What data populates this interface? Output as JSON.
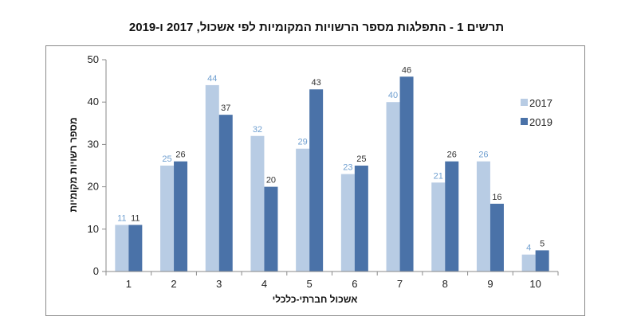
{
  "title": "תרשים 1 - התפלגות מספר הרשויות המקומיות לפי אשכול, 2017 ו-2019",
  "chart_data": {
    "type": "bar",
    "title": "תרשים 1 - התפלגות מספר הרשויות המקומיות לפי אשכול, 2017 ו-2019",
    "xlabel": "אשכול חברתי-כלכלי",
    "ylabel": "מספר רשויות מקומיות",
    "categories": [
      "1",
      "2",
      "3",
      "4",
      "5",
      "6",
      "7",
      "8",
      "9",
      "10"
    ],
    "ylim": [
      0,
      50
    ],
    "yticks": [
      0,
      10,
      20,
      30,
      40,
      50
    ],
    "grid": false,
    "legend_position": "right",
    "series": [
      {
        "name": "2017",
        "color": "#b8cce4",
        "label_color": "#6f9fd0",
        "values": [
          11,
          25,
          44,
          32,
          29,
          23,
          40,
          21,
          26,
          4
        ]
      },
      {
        "name": "2019",
        "color": "#4a72a8",
        "label_color": "#333333",
        "values": [
          11,
          26,
          37,
          20,
          43,
          25,
          46,
          26,
          16,
          5
        ]
      }
    ]
  }
}
